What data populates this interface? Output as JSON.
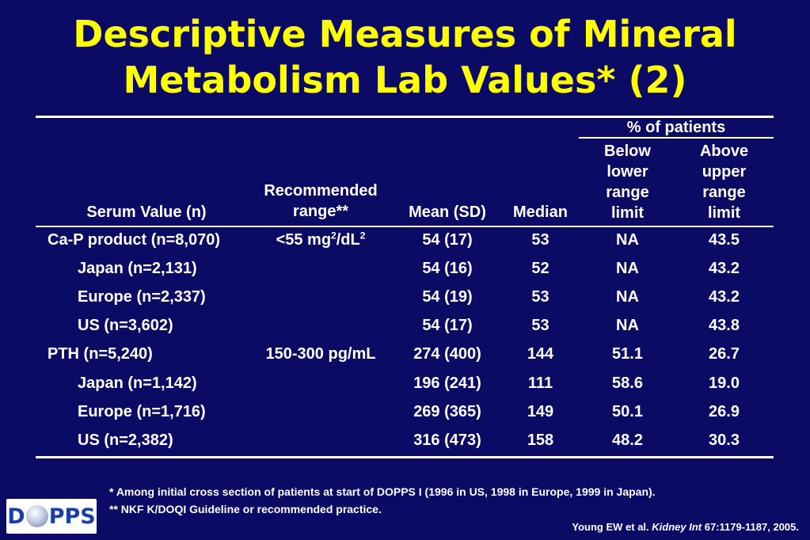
{
  "title": {
    "line1": "Descriptive Measures of Mineral",
    "line2": "Metabolism Lab Values* (2)"
  },
  "table": {
    "headers": {
      "serum": "Serum Value (n)",
      "range_l1": "Recommended",
      "range_l2": "range**",
      "mean": "Mean (SD)",
      "median": "Median",
      "group": "% of patients",
      "below": [
        "Below",
        "lower",
        "range",
        "limit"
      ],
      "above": [
        "Above",
        "upper",
        "range",
        "limit"
      ]
    },
    "rows": [
      {
        "label": "Ca-P product (n=8,070)",
        "range_main": "<55 mg",
        "range_sup1": "2",
        "range_mid": "/dL",
        "range_sup2": "2",
        "mean": "54 (17)",
        "median": "53",
        "below": "NA",
        "above": "43.5"
      },
      {
        "label": "Japan (n=2,131)",
        "mean": "54 (16)",
        "median": "52",
        "below": "NA",
        "above": "43.2"
      },
      {
        "label": "Europe (n=2,337)",
        "mean": "54 (19)",
        "median": "53",
        "below": "NA",
        "above": "43.2"
      },
      {
        "label": "US (n=3,602)",
        "mean": "54 (17)",
        "median": "53",
        "below": "NA",
        "above": "43.8"
      },
      {
        "label": "PTH (n=5,240)",
        "range_main": "150-300 pg/mL",
        "mean": "274 (400)",
        "median": "144",
        "below": "51.1",
        "above": "26.7"
      },
      {
        "label": "Japan (n=1,142)",
        "mean": "196 (241)",
        "median": "111",
        "below": "58.6",
        "above": "19.0"
      },
      {
        "label": "Europe (n=1,716)",
        "mean": "269 (365)",
        "median": "149",
        "below": "50.1",
        "above": "26.9"
      },
      {
        "label": "US (n=2,382)",
        "mean": "316 (473)",
        "median": "158",
        "below": "48.2",
        "above": "30.3"
      }
    ]
  },
  "footnotes": {
    "note1": "* Among initial cross section of patients at start of DOPPS I (1996 in US, 1998 in Europe, 1999 in Japan).",
    "note2": "** NKF K/DOQI Guideline or recommended practice."
  },
  "citation": {
    "prefix": "Young EW et al. ",
    "journal": "Kidney Int",
    "suffix": " 67:1179-1187, 2005."
  },
  "logo": {
    "left": "D",
    "right": "PPS"
  },
  "colors": {
    "background": "#0b0b66",
    "title": "#ffff00",
    "text": "#ffffff"
  }
}
